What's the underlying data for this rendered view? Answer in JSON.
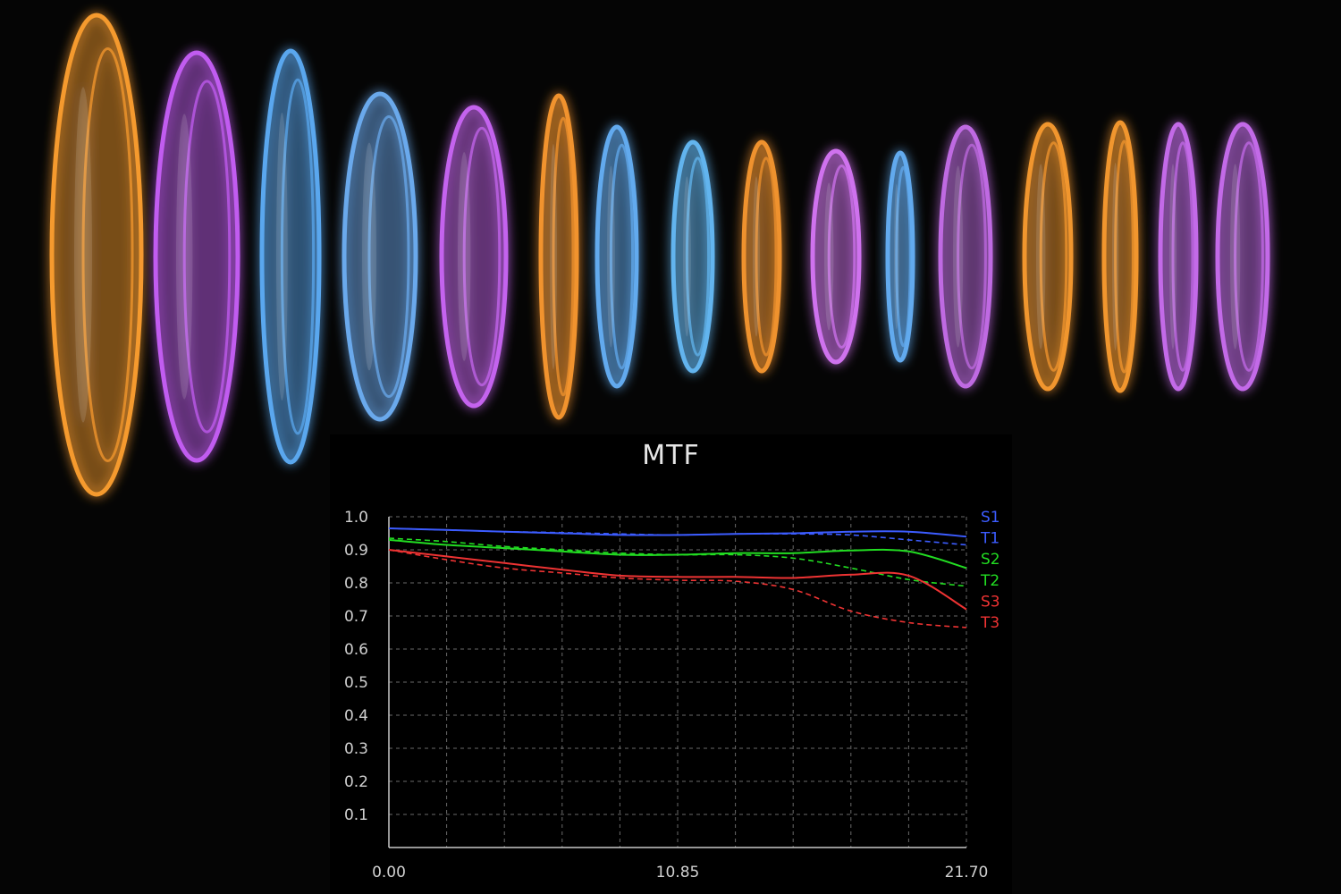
{
  "lens_elements": [
    {
      "color": "#f59a2e"
    },
    {
      "color": "#c15cf0"
    },
    {
      "color": "#5aa7ee"
    },
    {
      "color": "#6aa9ec"
    },
    {
      "color": "#c464ee"
    },
    {
      "color": "#f1932e"
    },
    {
      "color": "#62aaee"
    },
    {
      "color": "#62b4ee"
    },
    {
      "color": "#ef922e"
    },
    {
      "color": "#cf72ee"
    },
    {
      "color": "#62aaee"
    },
    {
      "color": "#bf6ae2"
    },
    {
      "color": "#f1962e"
    },
    {
      "color": "#f1962e"
    },
    {
      "color": "#c36ae8"
    },
    {
      "color": "#c36ae8"
    }
  ],
  "chart_data": {
    "type": "line",
    "title": "MTF",
    "xlabel": "",
    "ylabel": "",
    "xlim": [
      0,
      21.7
    ],
    "ylim": [
      0,
      1.0
    ],
    "x_ticks": [
      "0.00",
      "10.85",
      "21.70"
    ],
    "y_ticks": [
      "0.1",
      "0.2",
      "0.3",
      "0.4",
      "0.5",
      "0.6",
      "0.7",
      "0.8",
      "0.9",
      "1.0"
    ],
    "grid": true,
    "legend_position": "right",
    "x": [
      0,
      2.17,
      4.34,
      6.51,
      8.68,
      10.85,
      13.02,
      15.19,
      17.36,
      19.53,
      21.7
    ],
    "series": [
      {
        "name": "S1",
        "color": "#3c5cff",
        "dash": false,
        "values": [
          0.965,
          0.96,
          0.955,
          0.95,
          0.945,
          0.945,
          0.948,
          0.95,
          0.955,
          0.955,
          0.94
        ]
      },
      {
        "name": "T1",
        "color": "#3c5cff",
        "dash": true,
        "values": [
          0.965,
          0.96,
          0.955,
          0.952,
          0.948,
          0.945,
          0.948,
          0.948,
          0.945,
          0.93,
          0.915
        ]
      },
      {
        "name": "S2",
        "color": "#22dd22",
        "dash": false,
        "values": [
          0.93,
          0.915,
          0.905,
          0.895,
          0.885,
          0.885,
          0.89,
          0.89,
          0.898,
          0.895,
          0.845
        ]
      },
      {
        "name": "T2",
        "color": "#22dd22",
        "dash": true,
        "values": [
          0.935,
          0.925,
          0.91,
          0.9,
          0.89,
          0.885,
          0.885,
          0.875,
          0.845,
          0.81,
          0.79
        ]
      },
      {
        "name": "S3",
        "color": "#ee3333",
        "dash": false,
        "values": [
          0.9,
          0.88,
          0.86,
          0.84,
          0.822,
          0.818,
          0.818,
          0.815,
          0.825,
          0.822,
          0.72
        ]
      },
      {
        "name": "T3",
        "color": "#ee3333",
        "dash": true,
        "values": [
          0.9,
          0.87,
          0.845,
          0.83,
          0.815,
          0.808,
          0.805,
          0.78,
          0.715,
          0.68,
          0.665
        ]
      }
    ]
  }
}
